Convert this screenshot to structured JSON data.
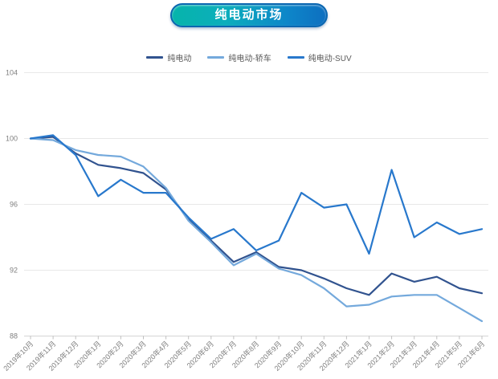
{
  "title": {
    "text": "纯电动市场"
  },
  "legend": [
    {
      "label": "纯电动",
      "color": "#31538f"
    },
    {
      "label": "纯电动-轿车",
      "color": "#74a9dc"
    },
    {
      "label": "纯电动-SUV",
      "color": "#2878cc"
    }
  ],
  "colors": {
    "badge_teal": "#06b4ab",
    "badge_blue": "#0d6fc0",
    "badge_border": "#0a66b0",
    "grid": "#e8e8e8",
    "axis": "#d4d4d4",
    "tick_mark": "#bfbfbf",
    "tick_text": "#7f7f7f",
    "legend_text": "#595959"
  },
  "chart_data": {
    "type": "line",
    "title": "纯电动市场",
    "categories": [
      "2019年10月",
      "2019年11月",
      "2019年12月",
      "2020年1月",
      "2020年2月",
      "2020年3月",
      "2020年4月",
      "2020年5月",
      "2020年6月",
      "2020年7月",
      "2020年8月",
      "2020年9月",
      "2020年10月",
      "2020年11月",
      "2020年12月",
      "2021年1月",
      "2021年2月",
      "2021年3月",
      "2021年4月",
      "2021年5月",
      "2021年6月"
    ],
    "series": [
      {
        "name": "纯电动",
        "color": "#31538f",
        "values": [
          100.0,
          100.1,
          99.1,
          98.4,
          98.2,
          97.9,
          96.9,
          95.1,
          93.8,
          92.5,
          93.1,
          92.2,
          92.0,
          91.5,
          90.9,
          90.5,
          91.8,
          91.3,
          91.6,
          90.9,
          90.6
        ]
      },
      {
        "name": "纯电动-轿车",
        "color": "#74a9dc",
        "values": [
          100.0,
          99.9,
          99.3,
          99.0,
          98.9,
          98.3,
          97.0,
          95.0,
          93.7,
          92.3,
          93.0,
          92.1,
          91.7,
          90.9,
          89.8,
          89.9,
          90.4,
          90.5,
          90.5,
          89.7,
          88.9
        ]
      },
      {
        "name": "纯电动-SUV",
        "color": "#2878cc",
        "values": [
          100.0,
          100.2,
          99.0,
          96.5,
          97.5,
          96.7,
          96.7,
          95.2,
          93.9,
          94.5,
          93.2,
          93.8,
          96.7,
          95.8,
          96.0,
          93.0,
          98.1,
          94.0,
          94.9,
          94.2,
          94.5
        ]
      }
    ],
    "y_ticks": [
      104,
      100,
      96,
      92,
      88
    ],
    "ylim": [
      88,
      104
    ],
    "grid": true,
    "legend_position": "top",
    "xlabel": "",
    "ylabel": ""
  }
}
